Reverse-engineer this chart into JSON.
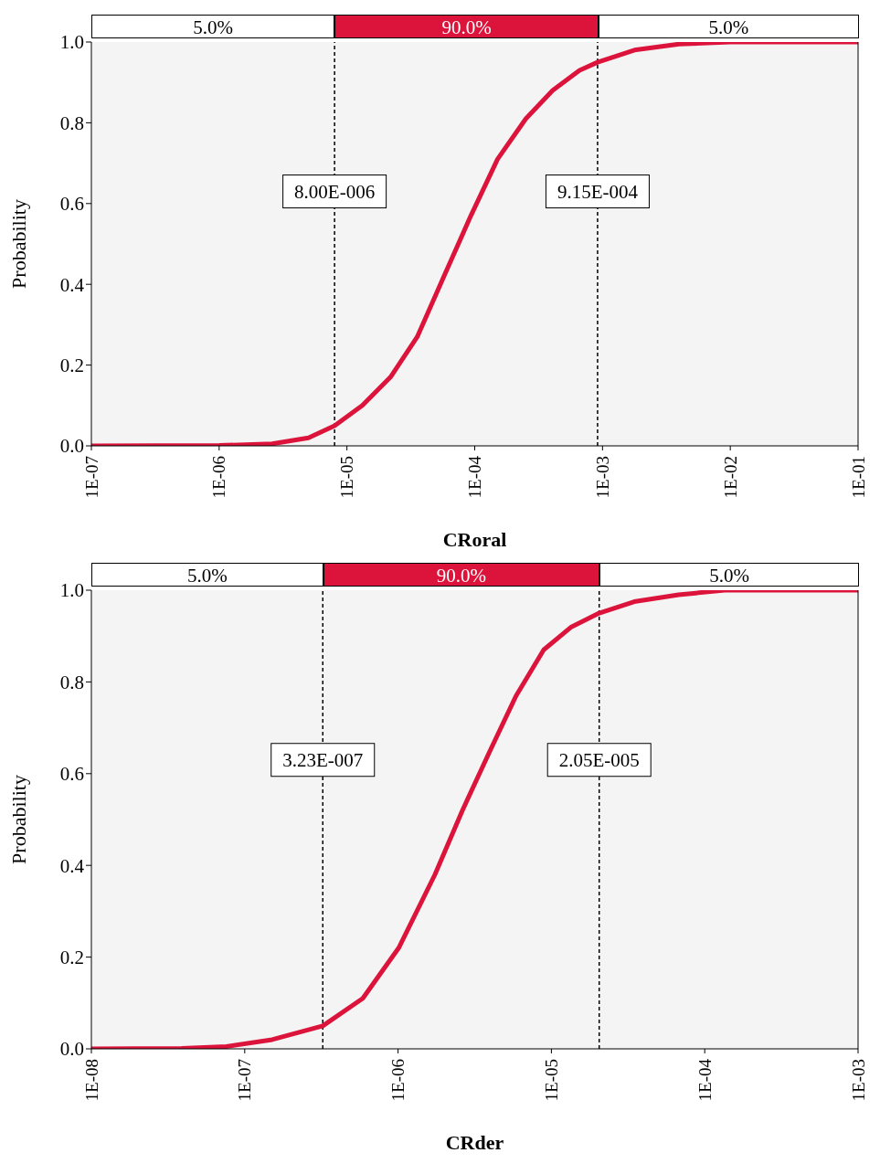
{
  "chart_data": [
    {
      "type": "line",
      "xlabel": "CRoral",
      "ylabel": "Probability",
      "log": "x",
      "grid": false,
      "marker": "none",
      "line_style": "solid",
      "color": "#dc143c",
      "x": [
        1e-07,
        1e-06,
        2.6e-06,
        5e-06,
        8e-06,
        1.32e-05,
        2.19e-05,
        3.55e-05,
        5.75e-05,
        9.33e-05,
        0.000151,
        0.000251,
        0.000407,
        0.000661,
        0.000915,
        0.00178,
        0.00398,
        0.01,
        0.1
      ],
      "values": [
        0,
        0.001,
        0.005,
        0.02,
        0.05,
        0.1,
        0.17,
        0.27,
        0.42,
        0.57,
        0.71,
        0.81,
        0.88,
        0.93,
        0.95,
        0.98,
        0.995,
        1,
        1
      ],
      "xlim": [
        1e-07,
        0.1
      ],
      "xticks": [
        {
          "value": 1e-07,
          "label": "1E-07"
        },
        {
          "value": 1e-06,
          "label": "1E-06"
        },
        {
          "value": 1e-05,
          "label": "1E-05"
        },
        {
          "value": 0.0001,
          "label": "1E-04"
        },
        {
          "value": 0.001,
          "label": "1E-03"
        },
        {
          "value": 0.01,
          "label": "1E-02"
        },
        {
          "value": 0.1,
          "label": "1E-01"
        }
      ],
      "ylim": [
        0,
        1
      ],
      "yticks": [
        {
          "value": 0,
          "label": "0.0"
        },
        {
          "value": 0.2,
          "label": "0.2"
        },
        {
          "value": 0.4,
          "label": "0.4"
        },
        {
          "value": 0.6,
          "label": "0.6"
        },
        {
          "value": 0.8,
          "label": "0.8"
        },
        {
          "value": 1,
          "label": "1.0"
        }
      ],
      "ref_lines": [
        {
          "axis": "x",
          "value": 8e-06,
          "label": "8.00E-006",
          "line_style": "dashed",
          "color": "#000000"
        },
        {
          "axis": "x",
          "value": 0.000915,
          "label": "9.15E-004",
          "line_style": "dashed",
          "color": "#000000"
        }
      ],
      "annotations": [
        "5.0%",
        "90.0%",
        "5.0%"
      ]
    },
    {
      "type": "line",
      "xlabel": "CRder",
      "ylabel": "Probability",
      "log": "x",
      "grid": false,
      "marker": "none",
      "line_style": "solid",
      "color": "#dc143c",
      "x": [
        1e-08,
        3.89e-08,
        7.59e-08,
        1.51e-07,
        3.23e-07,
        5.89e-07,
        1.01e-06,
        1.74e-06,
        2.63e-06,
        3.98e-06,
        5.89e-06,
        8.91e-06,
        1.35e-05,
        2.05e-05,
        3.47e-05,
        6.76e-05,
        0.000135,
        0.001
      ],
      "values": [
        0,
        0.001,
        0.005,
        0.02,
        0.05,
        0.11,
        0.22,
        0.38,
        0.52,
        0.65,
        0.77,
        0.87,
        0.92,
        0.95,
        0.975,
        0.99,
        1,
        1
      ],
      "xlim": [
        1e-08,
        0.001
      ],
      "xticks": [
        {
          "value": 1e-08,
          "label": "1E-08"
        },
        {
          "value": 1e-07,
          "label": "1E-07"
        },
        {
          "value": 1e-06,
          "label": "1E-06"
        },
        {
          "value": 1e-05,
          "label": "1E-05"
        },
        {
          "value": 0.0001,
          "label": "1E-04"
        },
        {
          "value": 0.001,
          "label": "1E-03"
        }
      ],
      "ylim": [
        0,
        1
      ],
      "yticks": [
        {
          "value": 0,
          "label": "0.0"
        },
        {
          "value": 0.2,
          "label": "0.2"
        },
        {
          "value": 0.4,
          "label": "0.4"
        },
        {
          "value": 0.6,
          "label": "0.6"
        },
        {
          "value": 0.8,
          "label": "0.8"
        },
        {
          "value": 1,
          "label": "1.0"
        }
      ],
      "ref_lines": [
        {
          "axis": "x",
          "value": 3.23e-07,
          "label": "3.23E-007",
          "line_style": "dashed",
          "color": "#000000"
        },
        {
          "axis": "x",
          "value": 2.05e-05,
          "label": "2.05E-005",
          "line_style": "dashed",
          "color": "#000000"
        }
      ],
      "annotations": [
        "5.0%",
        "90.0%",
        "5.0%"
      ]
    }
  ]
}
